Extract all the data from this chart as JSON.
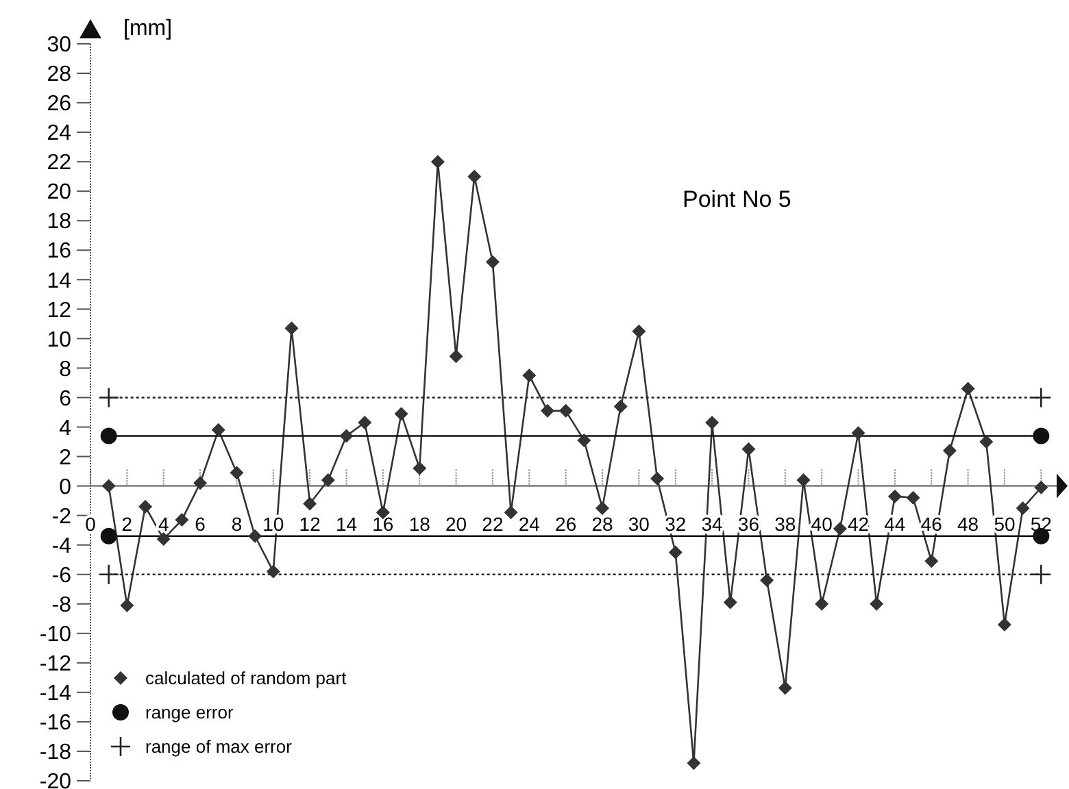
{
  "chart_data": {
    "type": "line",
    "title": "Point No 5",
    "ylabel": "[mm]",
    "xlim": [
      0,
      53
    ],
    "xticks": [
      0,
      2,
      4,
      6,
      8,
      10,
      12,
      14,
      16,
      18,
      20,
      22,
      24,
      26,
      28,
      30,
      32,
      34,
      36,
      38,
      40,
      42,
      44,
      46,
      48,
      50,
      52
    ],
    "ylim": [
      -20,
      30
    ],
    "yticks": [
      -20,
      -18,
      -16,
      -14,
      -12,
      -10,
      -8,
      -6,
      -4,
      -2,
      0,
      2,
      4,
      6,
      8,
      10,
      12,
      14,
      16,
      18,
      20,
      22,
      24,
      26,
      28,
      30
    ],
    "grid": false,
    "legend": "bottom left",
    "series": [
      {
        "name": "calculated of random part",
        "color": "#333333",
        "marker": "diamond",
        "line_style": "solid",
        "x": [
          1,
          2,
          3,
          4,
          5,
          6,
          7,
          8,
          9,
          10,
          11,
          12,
          13,
          14,
          15,
          16,
          17,
          18,
          19,
          20,
          21,
          22,
          23,
          24,
          25,
          26,
          27,
          28,
          29,
          30,
          31,
          32,
          33,
          34,
          35,
          36,
          37,
          38,
          39,
          40,
          41,
          42,
          43,
          44,
          45,
          46,
          47,
          48,
          49,
          50,
          51,
          52
        ],
        "values": [
          0,
          -8.1,
          -1.4,
          -3.6,
          -2.3,
          0.2,
          3.8,
          0.9,
          -3.4,
          -5.8,
          10.7,
          -1.2,
          0.4,
          3.4,
          4.3,
          -1.8,
          4.9,
          1.2,
          22,
          8.8,
          21,
          15.2,
          -1.8,
          7.5,
          5.1,
          5.1,
          3.1,
          -1.5,
          5.4,
          10.5,
          0.5,
          -4.5,
          -18.8,
          4.3,
          -7.9,
          2.5,
          -6.4,
          -13.7,
          0.4,
          -8,
          -2.9,
          3.6,
          -8,
          -0.7,
          -0.8,
          -5.1,
          2.4,
          6.6,
          3,
          -9.4,
          -1.5,
          -0.1
        ]
      },
      {
        "name": "range error",
        "color": "#111111",
        "marker": "circle",
        "line_style": "solid",
        "x": [
          1,
          52
        ],
        "values": [
          3.4,
          3.4
        ]
      },
      {
        "color": "#111111",
        "marker": "circle",
        "line_style": "solid",
        "x": [
          1,
          52
        ],
        "values": [
          -3.4,
          -3.4
        ]
      },
      {
        "name": "range of max error",
        "color": "#222222",
        "marker": "cross",
        "line_style": "dotted",
        "x": [
          1,
          52
        ],
        "values": [
          6,
          6
        ]
      },
      {
        "color": "#222222",
        "marker": "cross",
        "line_style": "dotted",
        "x": [
          1,
          52
        ],
        "values": [
          -6,
          -6
        ]
      }
    ]
  }
}
